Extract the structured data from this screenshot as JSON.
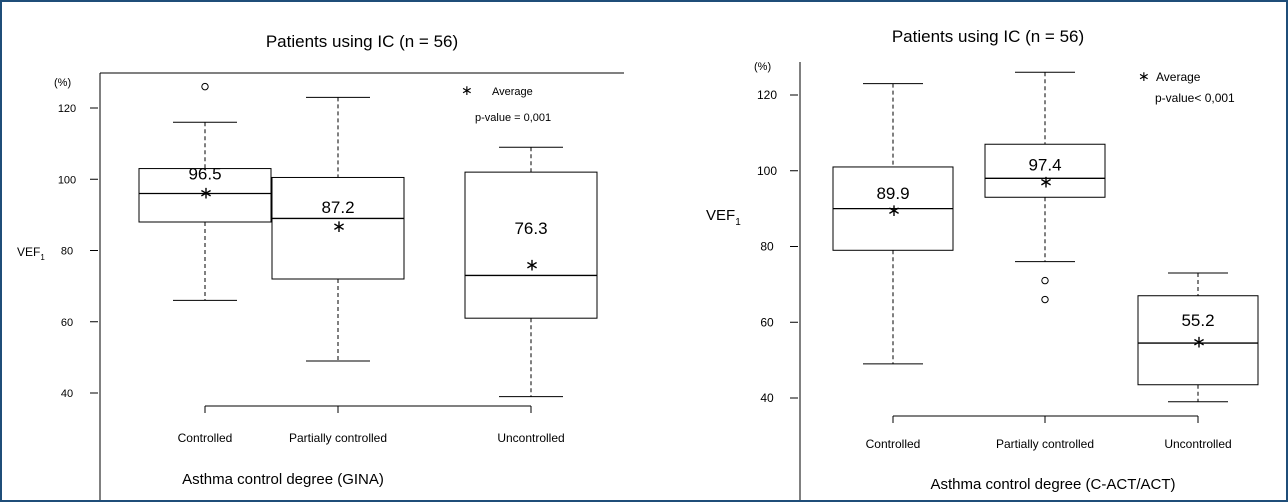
{
  "chart_data": [
    {
      "type": "box",
      "title": "Patients using IC (n = 56)",
      "xlabel": "Asthma control degree (GINA)",
      "ylabel": "VEF",
      "ylabel_sub": "1",
      "unit": "(%)",
      "yticks": [
        40,
        60,
        80,
        100,
        120
      ],
      "legend": {
        "marker": "∗",
        "label": "Average",
        "pvalue": "p-value = 0,001"
      },
      "categories": [
        "Controlled",
        "Partially controlled",
        "Uncontrolled"
      ],
      "boxes": [
        {
          "whisker_low": 66,
          "q1": 88,
          "median": 96,
          "q3": 103,
          "whisker_high": 116,
          "mean": 96.5,
          "mean_label": "96.5",
          "outliers": [
            126
          ]
        },
        {
          "whisker_low": 49,
          "q1": 72,
          "median": 89,
          "q3": 100.5,
          "whisker_high": 123,
          "mean": 87.2,
          "mean_label": "87.2",
          "outliers": []
        },
        {
          "whisker_low": 39,
          "q1": 61,
          "median": 73,
          "q3": 102,
          "whisker_high": 109,
          "mean": 76.3,
          "mean_label": "76.3",
          "outliers": []
        }
      ]
    },
    {
      "type": "box",
      "title": "Patients using IC (n = 56)",
      "xlabel": "Asthma control degree (C-ACT/ACT)",
      "ylabel": "VEF",
      "ylabel_sub": "1",
      "unit": "(%)",
      "yticks": [
        40,
        60,
        80,
        100,
        120
      ],
      "legend": {
        "marker": "∗",
        "label": "Average",
        "pvalue": "p-value< 0,001"
      },
      "categories": [
        "Controlled",
        "Partially controlled",
        "Uncontrolled"
      ],
      "boxes": [
        {
          "whisker_low": 49,
          "q1": 79,
          "median": 90,
          "q3": 101,
          "whisker_high": 123,
          "mean": 89.9,
          "mean_label": "89.9",
          "outliers": []
        },
        {
          "whisker_low": 76,
          "q1": 93,
          "median": 98,
          "q3": 107,
          "whisker_high": 126,
          "mean": 97.4,
          "mean_label": "97.4",
          "outliers": [
            71,
            66
          ]
        },
        {
          "whisker_low": 39,
          "q1": 43.5,
          "median": 54.5,
          "q3": 67,
          "whisker_high": 73,
          "mean": 55.2,
          "mean_label": "55.2",
          "outliers": []
        }
      ]
    }
  ]
}
